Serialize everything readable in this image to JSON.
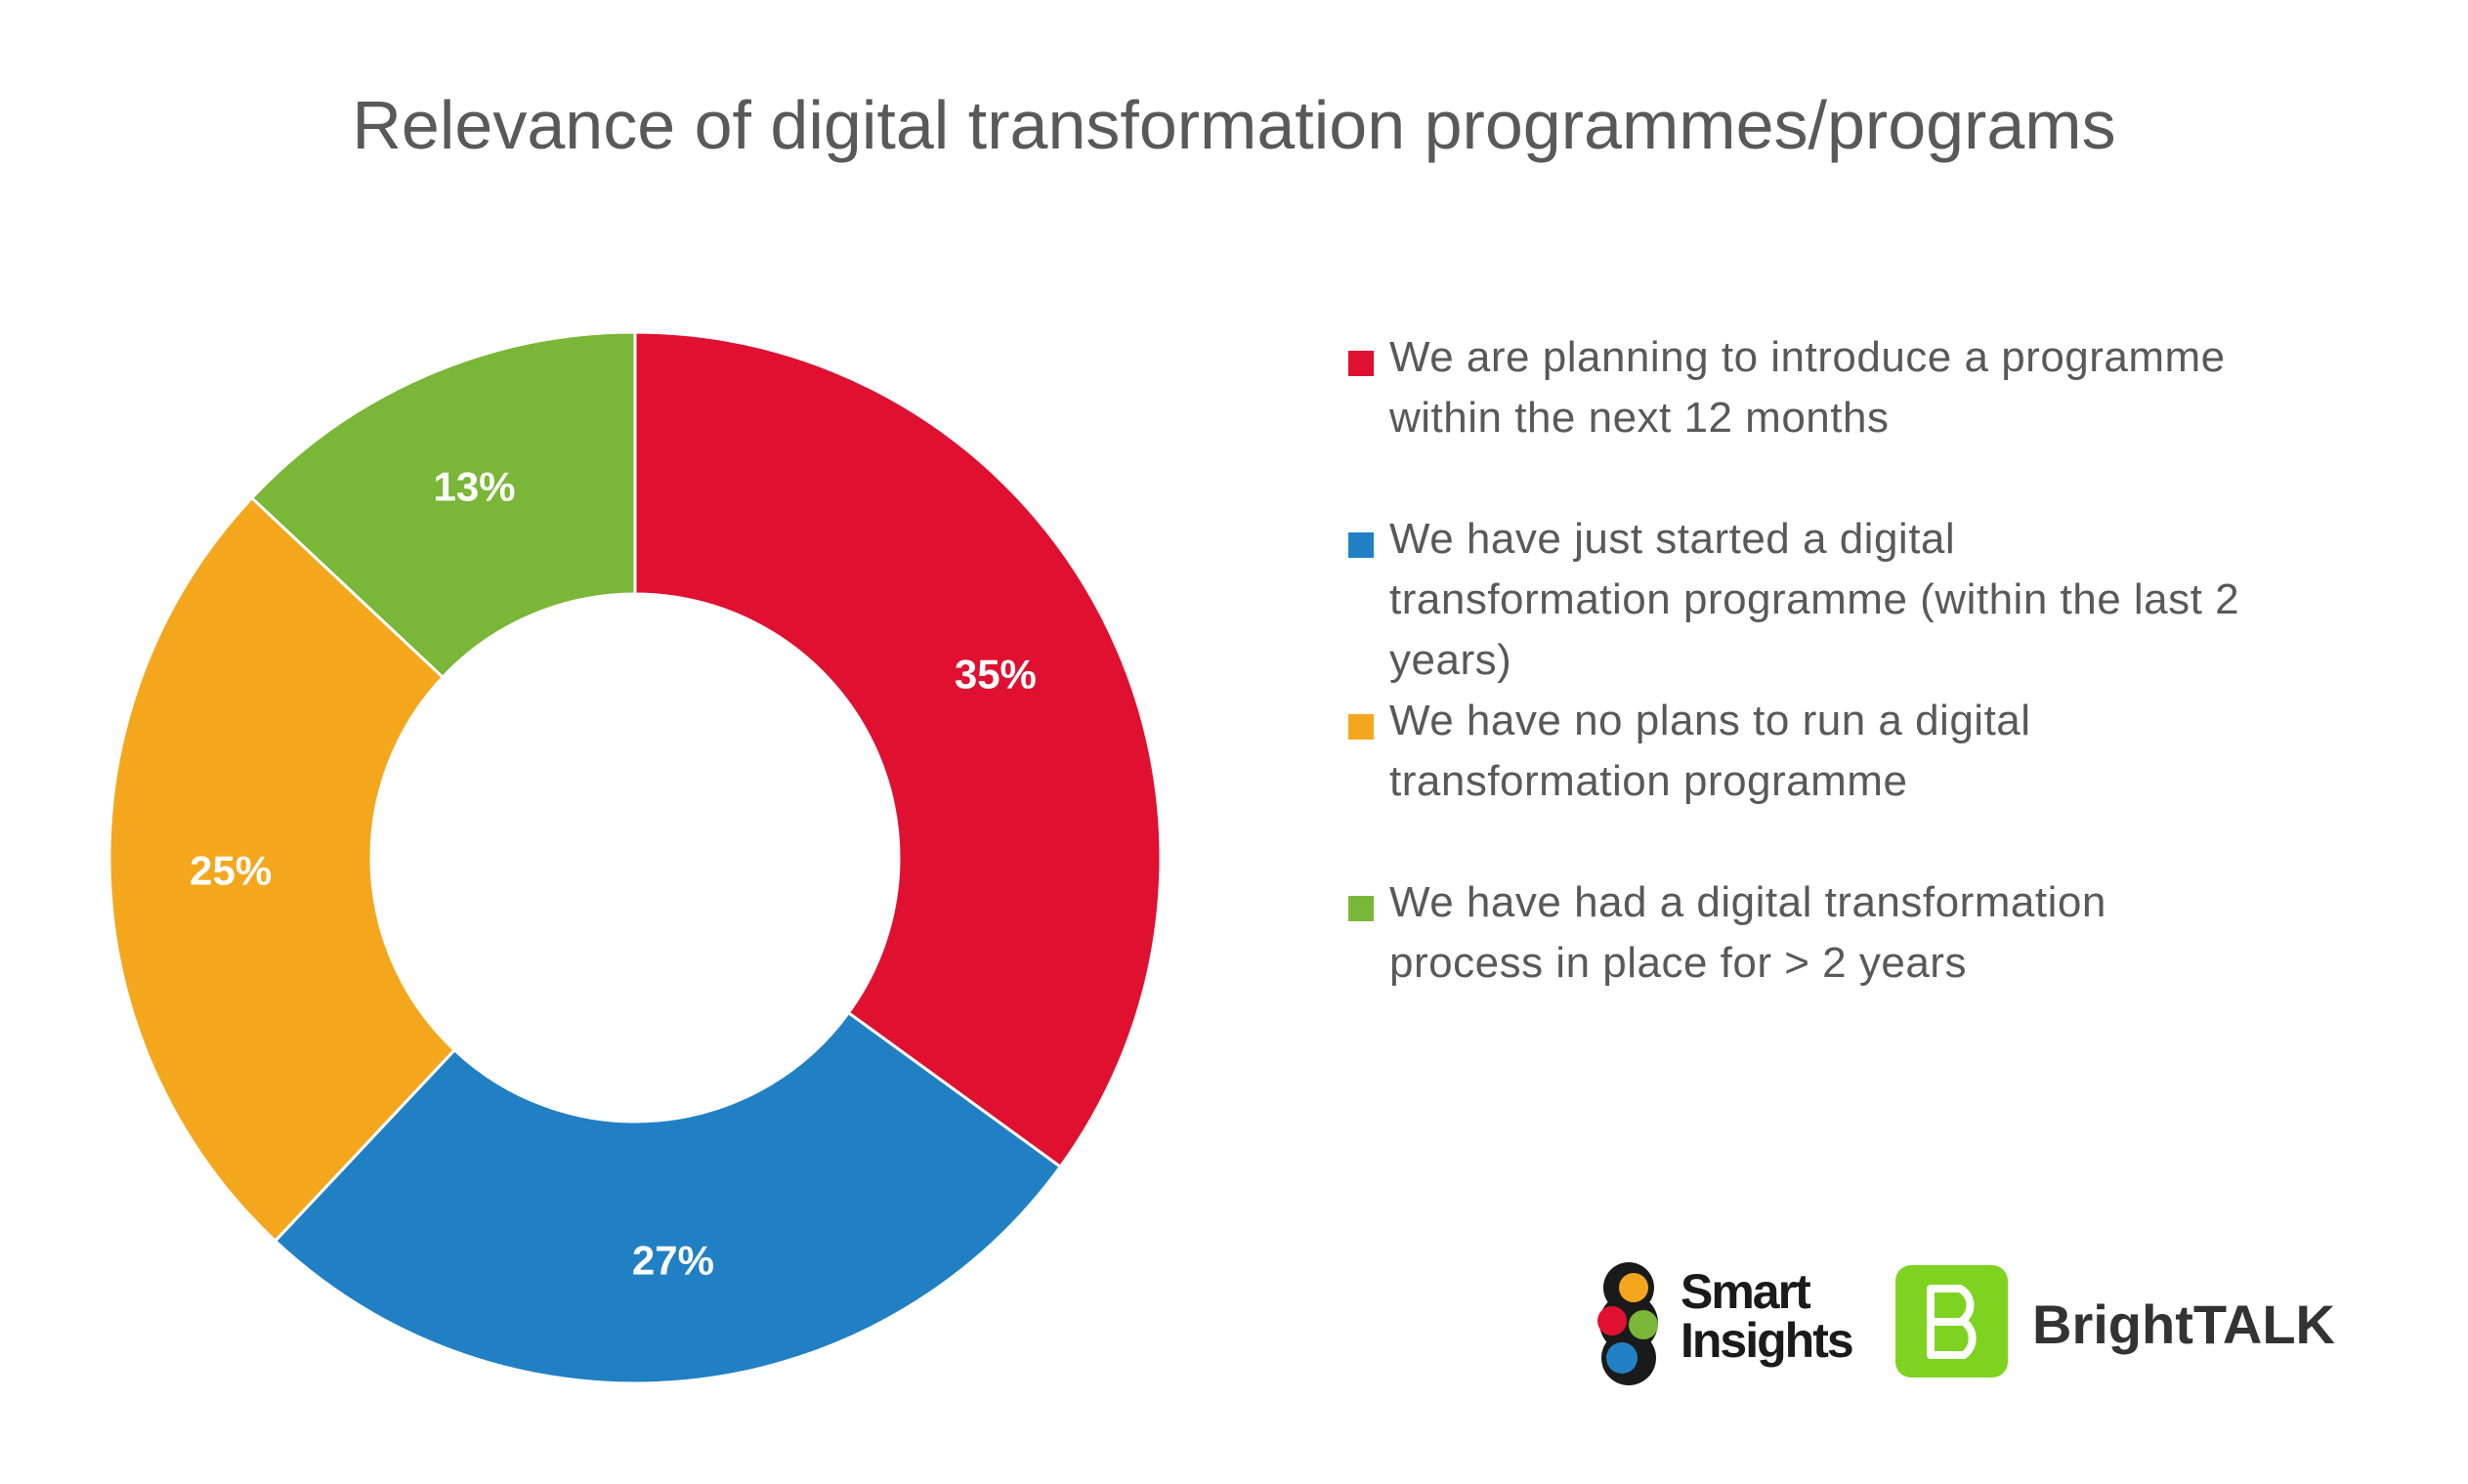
{
  "chart_data": {
    "type": "donut",
    "title": "Relevance of digital transformation programmes/programs",
    "series": [
      {
        "values": [
          35,
          27,
          25,
          13
        ],
        "labels": [
          "35%",
          "27%",
          "25%",
          "13%"
        ],
        "colors": [
          "#e01030",
          "#2180c4",
          "#f4a71d",
          "#7ab637"
        ]
      }
    ],
    "categories": [
      "We are planning to introduce a programme within the next 12 months",
      "We have just started a digital transformation programme (within the last 2 years)",
      "We have no plans to run a digital transformation programme",
      "We have had a digital transformation process in place for > 2 years"
    ],
    "legend_position": "right"
  },
  "legend": {
    "items": [
      {
        "label": "We are planning to introduce a programme within the next 12 months",
        "color": "#e01030"
      },
      {
        "label": " We have just started a digital transformation programme (within the last 2 years)",
        "color": "#2180c4"
      },
      {
        "label": " We have no plans to run a digital transformation programme",
        "color": "#f4a71d"
      },
      {
        "label": " We have had a digital transformation process in place for > 2 years",
        "color": "#7ab637"
      }
    ]
  },
  "logos": {
    "smart_insights": "Smart Insights",
    "smart_insights_line1": "Smart",
    "smart_insights_line2": "Insights",
    "brighttalk": "BrightTALK",
    "brighttalk_icon_letter": "B"
  }
}
